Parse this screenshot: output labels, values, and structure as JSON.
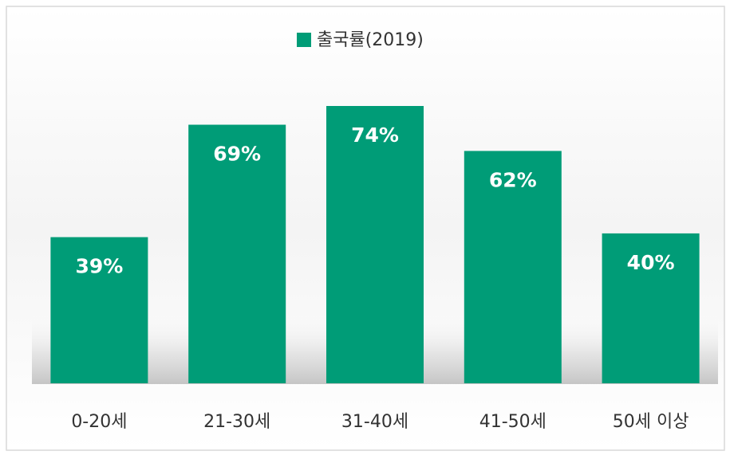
{
  "chart_data": {
    "type": "bar",
    "categories": [
      "0-20세",
      "21-30세",
      "31-40세",
      "41-50세",
      "50세 이상"
    ],
    "series": [
      {
        "name": "출국률(2019)",
        "color": "#009c77",
        "values": [
          39,
          69,
          74,
          62,
          40
        ],
        "value_labels": [
          "39%",
          "69%",
          "74%",
          "62%",
          "40%"
        ]
      }
    ],
    "legend": "top"
  }
}
